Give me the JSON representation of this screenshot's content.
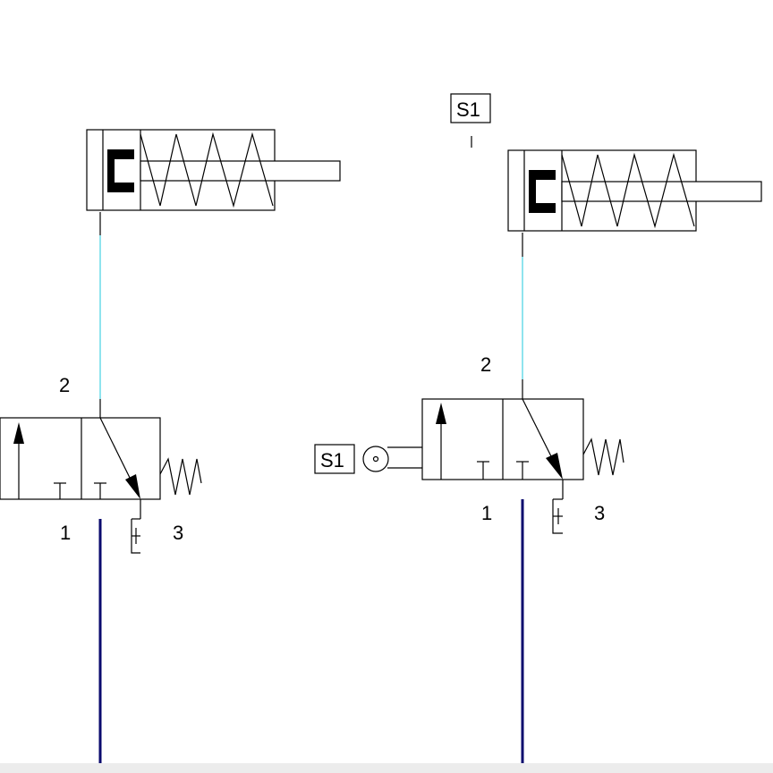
{
  "colors": {
    "line": "#000000",
    "pressure_line": "#0a0a6e",
    "signal_line": "#8fe4ee",
    "background": "#ffffff"
  },
  "circuit_left": {
    "port_out": "2",
    "port_in": "1",
    "port_exhaust": "3"
  },
  "circuit_right": {
    "sensor_tag": "S1",
    "actuator_tag": "S1",
    "port_out": "2",
    "port_in": "1",
    "port_exhaust": "3"
  }
}
